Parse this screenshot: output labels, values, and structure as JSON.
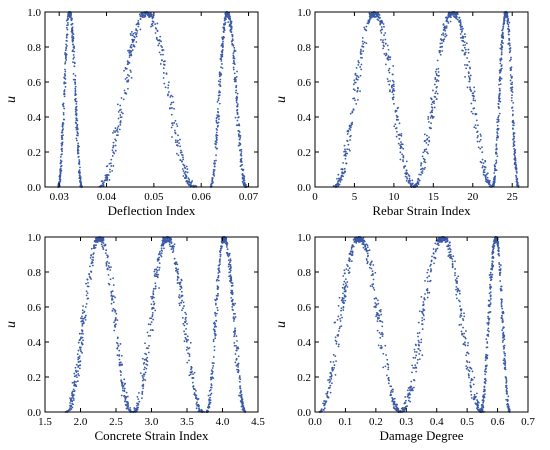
{
  "chart_data": [
    {
      "type": "scatter",
      "xlabel": "Deflection Index",
      "ylabel": "u",
      "xlim": [
        0.027,
        0.072
      ],
      "ylim": [
        0,
        1.0
      ],
      "xticks": [
        0.03,
        0.04,
        0.05,
        0.06,
        0.07
      ],
      "xtick_labels": [
        "0.03",
        "0.04",
        "0.05",
        "0.06",
        "0.07"
      ],
      "yticks": [
        0,
        0.2,
        0.4,
        0.6,
        0.8,
        1.0
      ],
      "ytick_labels": [
        "0.0",
        "0.2",
        "0.4",
        "0.6",
        "0.8",
        "1.0"
      ],
      "marker_color": "#3a5aa8",
      "peaks": [
        {
          "center": 0.0322,
          "left_base": 0.0298,
          "right_base": 0.0348,
          "peak": 1.0
        },
        {
          "center": 0.0483,
          "left_base": 0.0385,
          "right_base": 0.0585,
          "peak": 1.0
        },
        {
          "center": 0.0655,
          "left_base": 0.062,
          "right_base": 0.0695,
          "peak": 1.0
        }
      ]
    },
    {
      "type": "scatter",
      "xlabel": "Rebar Strain Index",
      "ylabel": "u",
      "xlim": [
        0,
        27
      ],
      "ylim": [
        0,
        1.0
      ],
      "xticks": [
        0,
        5,
        10,
        15,
        20,
        25
      ],
      "xtick_labels": [
        "0",
        "5",
        "10",
        "15",
        "20",
        "25"
      ],
      "yticks": [
        0,
        0.2,
        0.4,
        0.6,
        0.8,
        1.0
      ],
      "ytick_labels": [
        "0.0",
        "0.2",
        "0.4",
        "0.6",
        "0.8",
        "1.0"
      ],
      "marker_color": "#3a5aa8",
      "peaks": [
        {
          "center": 7.5,
          "left_base": 2.5,
          "right_base": 12.5,
          "peak": 1.0
        },
        {
          "center": 17.5,
          "left_base": 12.5,
          "right_base": 22.5,
          "peak": 1.0
        },
        {
          "center": 24.2,
          "left_base": 22.5,
          "right_base": 25.8,
          "peak": 1.0
        }
      ]
    },
    {
      "type": "scatter",
      "xlabel": "Concrete Strain Index",
      "ylabel": "u",
      "xlim": [
        1.5,
        4.5
      ],
      "ylim": [
        0,
        1.0
      ],
      "xticks": [
        1.5,
        2.0,
        2.5,
        3.0,
        3.5,
        4.0,
        4.5
      ],
      "xtick_labels": [
        "1.5",
        "2.0",
        "2.5",
        "3.0",
        "3.5",
        "4.0",
        "4.5"
      ],
      "yticks": [
        0,
        0.2,
        0.4,
        0.6,
        0.8,
        1.0
      ],
      "ytick_labels": [
        "0.0",
        "0.2",
        "0.4",
        "0.6",
        "0.8",
        "1.0"
      ],
      "marker_color": "#3a5aa8",
      "peaks": [
        {
          "center": 2.27,
          "left_base": 1.8,
          "right_base": 2.72,
          "peak": 1.0
        },
        {
          "center": 3.22,
          "left_base": 2.75,
          "right_base": 3.72,
          "peak": 1.0
        },
        {
          "center": 4.02,
          "left_base": 3.78,
          "right_base": 4.32,
          "peak": 1.0
        }
      ]
    },
    {
      "type": "scatter",
      "xlabel": "Damage Degree",
      "ylabel": "u",
      "xlim": [
        0,
        0.7
      ],
      "ylim": [
        0,
        1.0
      ],
      "xticks": [
        0,
        0.1,
        0.2,
        0.3,
        0.4,
        0.5,
        0.6,
        0.7
      ],
      "xtick_labels": [
        "0.0",
        "0.1",
        "0.2",
        "0.3",
        "0.4",
        "0.5",
        "0.6",
        "0.7"
      ],
      "yticks": [
        0,
        0.2,
        0.4,
        0.6,
        0.8,
        1.0
      ],
      "ytick_labels": [
        "0.0",
        "0.2",
        "0.4",
        "0.6",
        "0.8",
        "1.0"
      ],
      "marker_color": "#3a5aa8",
      "peaks": [
        {
          "center": 0.145,
          "left_base": 0.015,
          "right_base": 0.28,
          "peak": 1.0
        },
        {
          "center": 0.42,
          "left_base": 0.28,
          "right_base": 0.55,
          "peak": 1.0
        },
        {
          "center": 0.595,
          "left_base": 0.545,
          "right_base": 0.64,
          "peak": 1.0
        }
      ]
    }
  ]
}
